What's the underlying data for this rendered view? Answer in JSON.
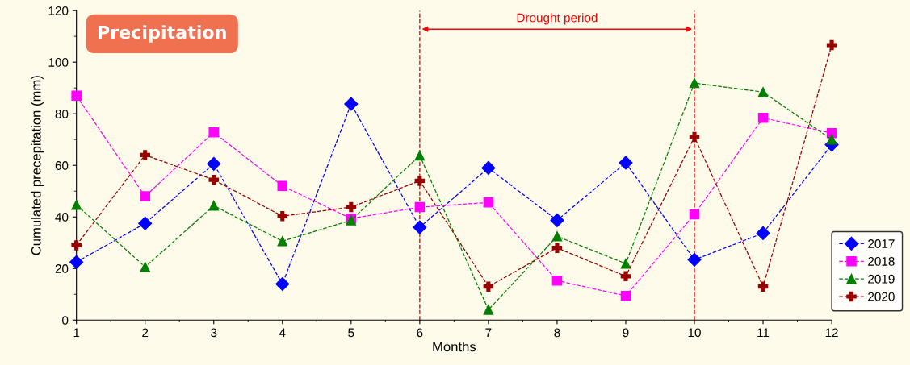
{
  "chart_data": {
    "type": "line",
    "title": "Precipitation",
    "xlabel": "Months",
    "ylabel": "Cumulated precepitation (mm)",
    "x": [
      1,
      2,
      3,
      4,
      5,
      6,
      7,
      8,
      9,
      10,
      11,
      12
    ],
    "xlim": [
      1,
      12
    ],
    "xticks": [
      1,
      2,
      3,
      4,
      5,
      6,
      7,
      8,
      9,
      10,
      11,
      12
    ],
    "ylim": [
      0,
      120
    ],
    "yticks": [
      0,
      20,
      40,
      60,
      80,
      100,
      120
    ],
    "line_style": "dashed",
    "grid": false,
    "legend": "bottom right",
    "series": [
      {
        "name": "2017",
        "color": "#0000ff",
        "marker": "diamond",
        "values": [
          22.5,
          37.5,
          60.6,
          14,
          83.8,
          36,
          59,
          38.7,
          61,
          23.4,
          33.7,
          68
        ]
      },
      {
        "name": "2018",
        "color": "#ff00ff",
        "marker": "square",
        "values": [
          87,
          48,
          72.8,
          52,
          39.4,
          43.8,
          45.6,
          15.3,
          9.4,
          41,
          78.4,
          72.5
        ]
      },
      {
        "name": "2019",
        "color": "#008000",
        "marker": "triangle",
        "values": [
          44.7,
          20.6,
          44.4,
          30.6,
          38.7,
          63.8,
          4,
          32.5,
          21.9,
          91.9,
          88.4,
          70
        ]
      },
      {
        "name": "2020",
        "color": "#990000",
        "marker": "cross",
        "values": [
          29,
          64,
          54.4,
          40.3,
          43.8,
          54,
          13,
          28,
          17,
          71,
          13,
          106.6
        ]
      }
    ],
    "ref_lines": [
      {
        "axis": "x",
        "value": 6,
        "color": "#ff0000",
        "line_style": "dashed"
      },
      {
        "axis": "x",
        "value": 10,
        "color": "#ff0000",
        "line_style": "dashed"
      }
    ],
    "annotations": [
      "Drought period"
    ]
  }
}
